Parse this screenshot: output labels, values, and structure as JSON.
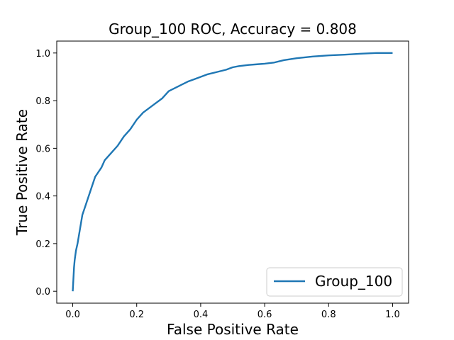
{
  "chart_data": {
    "type": "line",
    "title": "Group_100 ROC, Accuracy = 0.808",
    "xlabel": "False Positive Rate",
    "ylabel": "True Positive Rate",
    "xlim": [
      -0.05,
      1.05
    ],
    "ylim": [
      -0.05,
      1.05
    ],
    "xticks": [
      0.0,
      0.2,
      0.4,
      0.6,
      0.8,
      1.0
    ],
    "yticks": [
      0.0,
      0.2,
      0.4,
      0.6,
      0.8,
      1.0
    ],
    "xtick_labels": [
      "0.0",
      "0.2",
      "0.4",
      "0.6",
      "0.8",
      "1.0"
    ],
    "ytick_labels": [
      "0.0",
      "0.2",
      "0.4",
      "0.6",
      "0.8",
      "1.0"
    ],
    "grid": false,
    "legend_position": "bottom-right",
    "series": [
      {
        "name": "Group_100",
        "color": "#1f77b4",
        "x": [
          0.0,
          0.002,
          0.004,
          0.006,
          0.01,
          0.015,
          0.02,
          0.025,
          0.03,
          0.04,
          0.05,
          0.06,
          0.07,
          0.08,
          0.09,
          0.1,
          0.12,
          0.14,
          0.16,
          0.18,
          0.2,
          0.22,
          0.25,
          0.28,
          0.3,
          0.33,
          0.36,
          0.38,
          0.4,
          0.42,
          0.45,
          0.48,
          0.5,
          0.52,
          0.55,
          0.58,
          0.6,
          0.63,
          0.66,
          0.7,
          0.75,
          0.8,
          0.85,
          0.9,
          0.95,
          1.0
        ],
        "y": [
          0.0,
          0.05,
          0.1,
          0.13,
          0.17,
          0.2,
          0.24,
          0.28,
          0.32,
          0.36,
          0.4,
          0.44,
          0.48,
          0.5,
          0.52,
          0.55,
          0.58,
          0.61,
          0.65,
          0.68,
          0.72,
          0.75,
          0.78,
          0.81,
          0.84,
          0.86,
          0.88,
          0.89,
          0.9,
          0.91,
          0.92,
          0.93,
          0.94,
          0.945,
          0.95,
          0.953,
          0.955,
          0.96,
          0.97,
          0.978,
          0.985,
          0.99,
          0.993,
          0.997,
          1.0,
          1.0
        ]
      }
    ]
  }
}
